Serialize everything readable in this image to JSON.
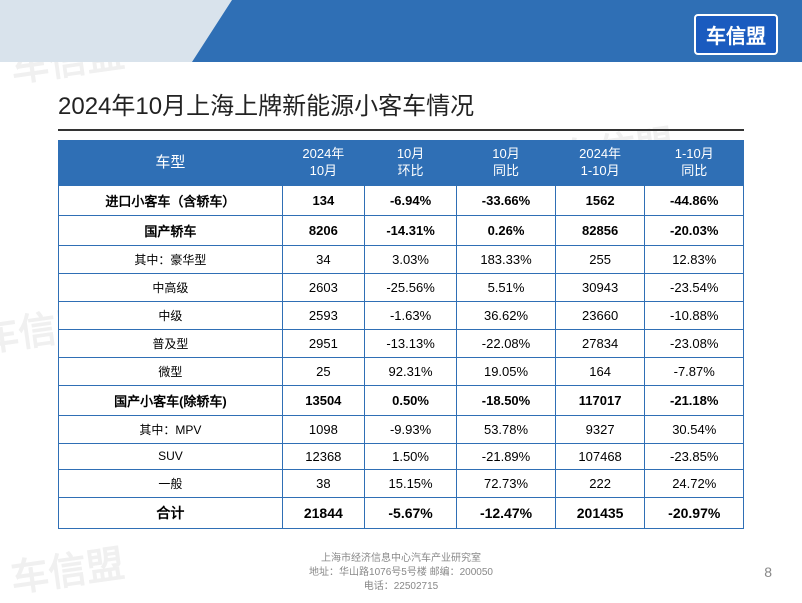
{
  "logo_text": "车信盟",
  "watermark_text": "车信盟",
  "slide_title": "2024年10月上海上牌新能源小客车情况",
  "page_number": "8",
  "footer_line1": "上海市经济信息中心汽车产业研究室",
  "footer_line2": "地址：华山路1076号5号楼  邮编：200050",
  "footer_line3": "电话：22502715",
  "table": {
    "columns": [
      "车型",
      "2024年\n10月",
      "10月\n环比",
      "10月\n同比",
      "2024年\n1-10月",
      "1-10月\n同比"
    ],
    "rows": [
      {
        "bold": true,
        "cells": [
          "进口小客车（含轿车）",
          "134",
          "-6.94%",
          "-33.66%",
          "1562",
          "-44.86%"
        ]
      },
      {
        "bold": true,
        "cells": [
          "国产轿车",
          "8206",
          "-14.31%",
          "0.26%",
          "82856",
          "-20.03%"
        ]
      },
      {
        "bold": false,
        "cells": [
          "其中：豪华型",
          "34",
          "3.03%",
          "183.33%",
          "255",
          "12.83%"
        ]
      },
      {
        "bold": false,
        "cells": [
          "中高级",
          "2603",
          "-25.56%",
          "5.51%",
          "30943",
          "-23.54%"
        ]
      },
      {
        "bold": false,
        "cells": [
          "中级",
          "2593",
          "-1.63%",
          "36.62%",
          "23660",
          "-10.88%"
        ]
      },
      {
        "bold": false,
        "cells": [
          "普及型",
          "2951",
          "-13.13%",
          "-22.08%",
          "27834",
          "-23.08%"
        ]
      },
      {
        "bold": false,
        "cells": [
          "微型",
          "25",
          "92.31%",
          "19.05%",
          "164",
          "-7.87%"
        ]
      },
      {
        "bold": true,
        "cells": [
          "国产小客车(除轿车)",
          "13504",
          "0.50%",
          "-18.50%",
          "117017",
          "-21.18%"
        ]
      },
      {
        "bold": false,
        "cells": [
          "其中：MPV",
          "1098",
          "-9.93%",
          "53.78%",
          "9327",
          "30.54%"
        ]
      },
      {
        "bold": false,
        "cells": [
          "SUV",
          "12368",
          "1.50%",
          "-21.89%",
          "107468",
          "-23.85%"
        ]
      },
      {
        "bold": false,
        "cells": [
          "一般",
          "38",
          "15.15%",
          "72.73%",
          "222",
          "24.72%"
        ]
      },
      {
        "bold": true,
        "total": true,
        "cells": [
          "合计",
          "21844",
          "-5.67%",
          "-12.47%",
          "201435",
          "-20.97%"
        ]
      }
    ],
    "border_color": "#2f6fb5",
    "header_bg": "#2f6fb5",
    "header_fg": "#ffffff"
  }
}
